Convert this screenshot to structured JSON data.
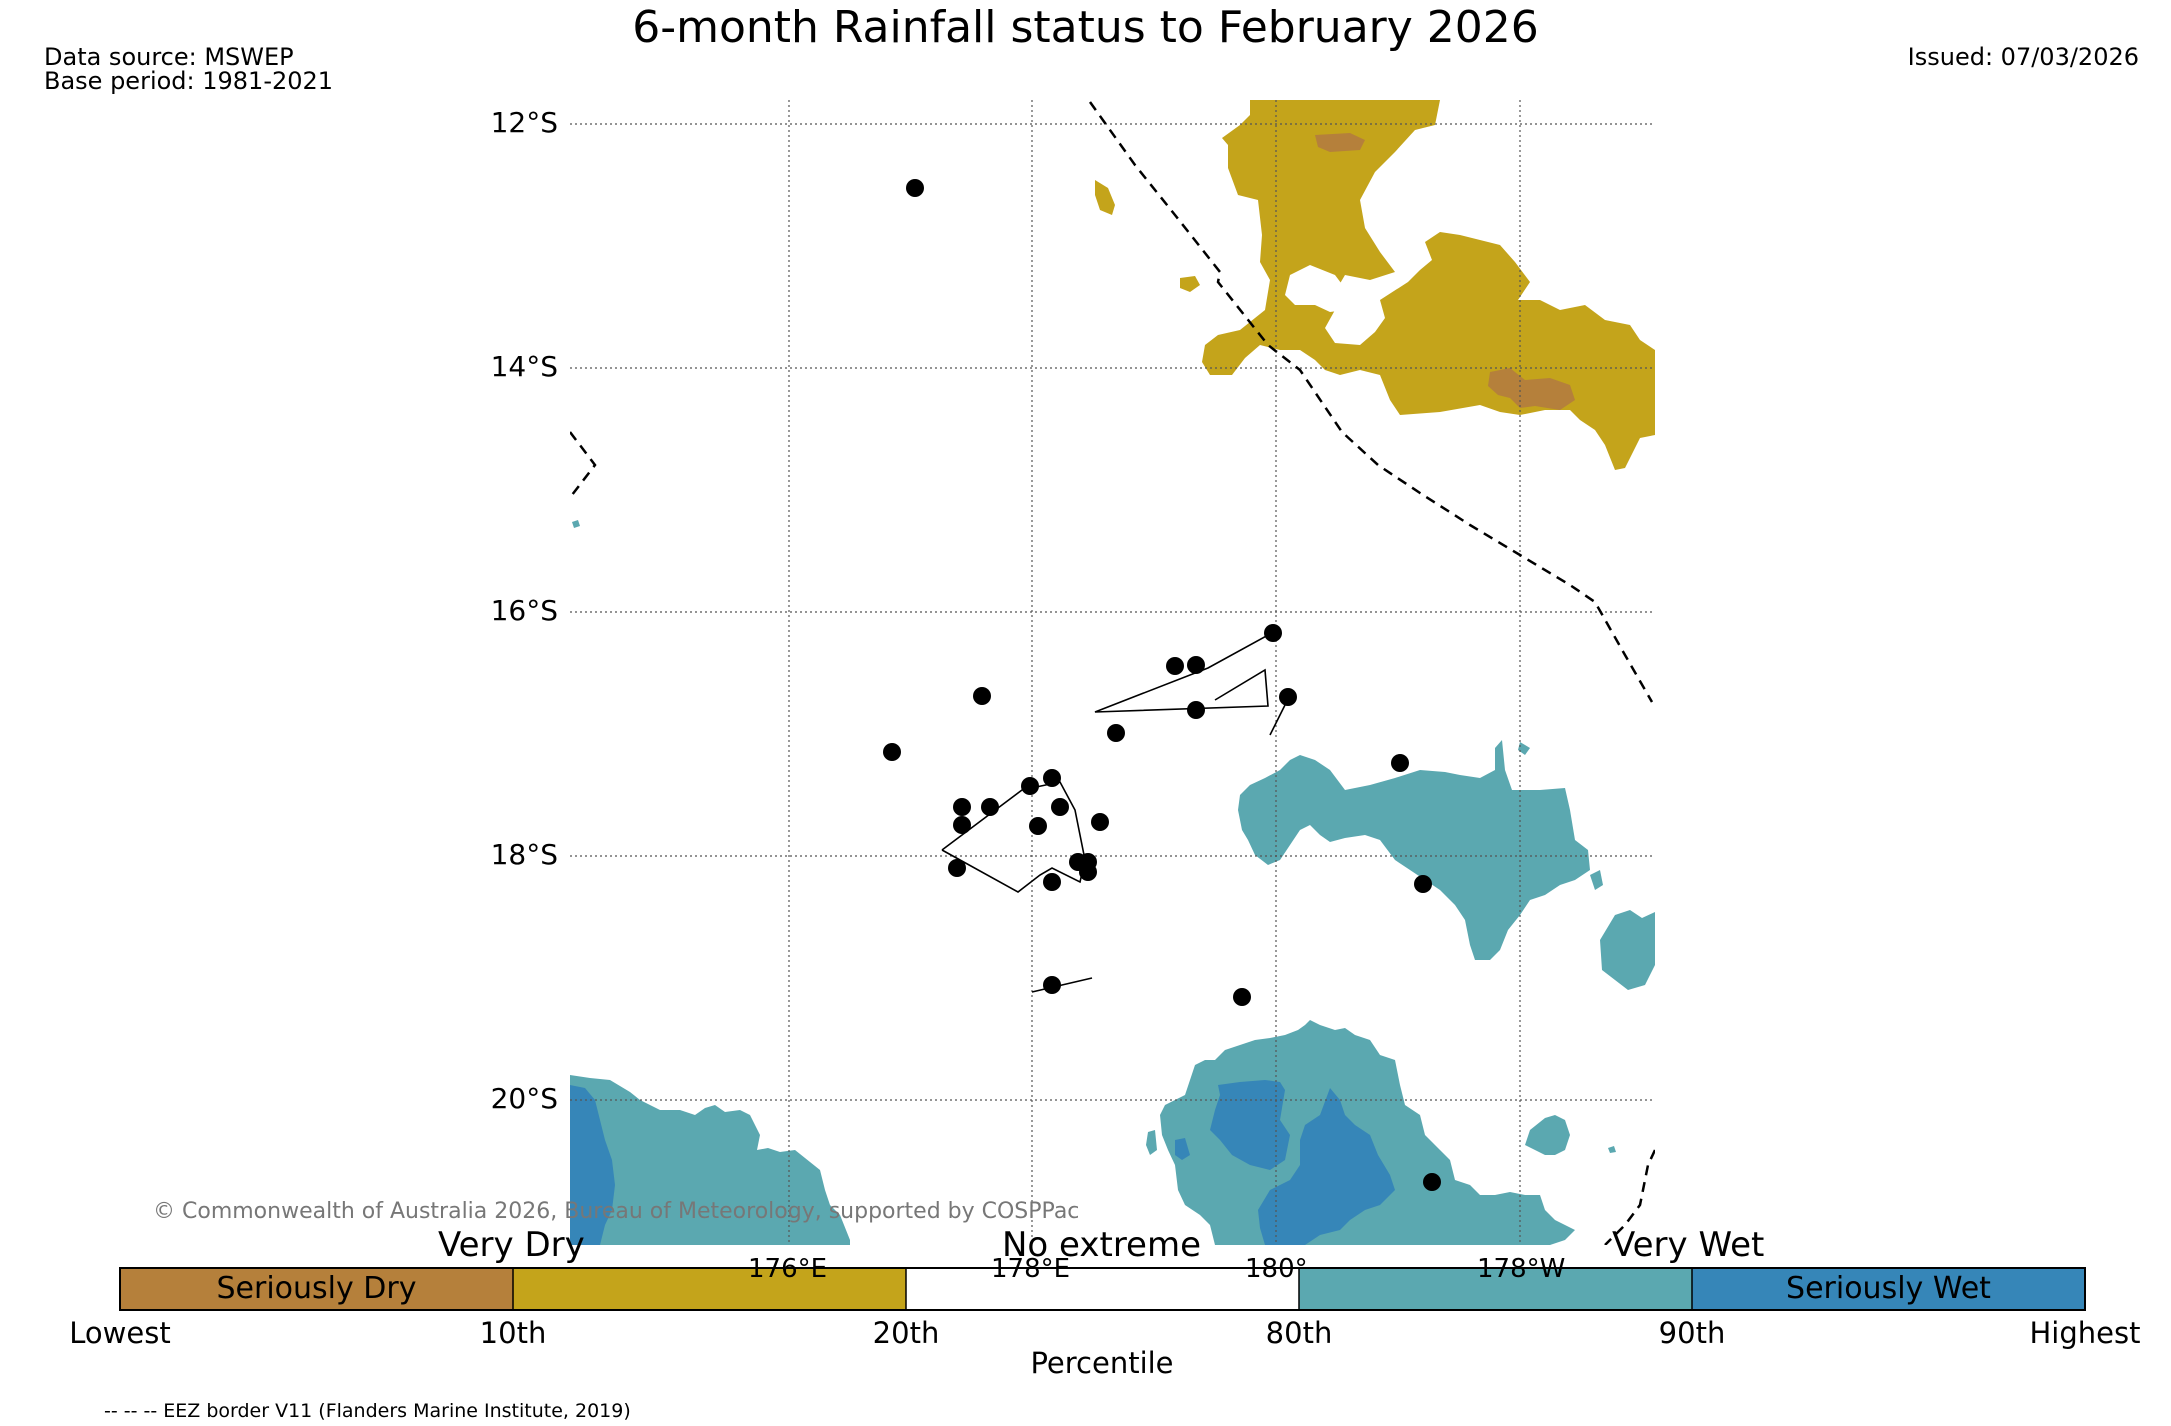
{
  "title": "6-month Rainfall status to February 2026",
  "data_source": "Data source: MSWEP",
  "base_period": "Base period: 1981-2021",
  "issued": "Issued: 07/03/2026",
  "lat_labels": [
    "12°S",
    "14°S",
    "16°S",
    "18°S",
    "20°S"
  ],
  "lon_labels": [
    "176°E",
    "178°E",
    "180°",
    "178°W"
  ],
  "copyright": "© Commonwealth of Australia 2026, Bureau of Meteorology, supported by COSPPac",
  "categories": {
    "very_dry": "Very Dry",
    "no_extreme": "No extreme",
    "very_wet": "Very Wet"
  },
  "colorbar": {
    "segments": [
      {
        "label": "Seriously Dry",
        "color": "#b5803b"
      },
      {
        "label": "",
        "color": "#c4a41b"
      },
      {
        "label": "",
        "color": "#ffffff"
      },
      {
        "label": "",
        "color": "#5ba8b0"
      },
      {
        "label": "Seriously Wet",
        "color": "#3686b8"
      }
    ],
    "ticks": [
      "Lowest",
      "10th",
      "20th",
      "80th",
      "90th",
      "Highest"
    ],
    "xlabel": "Percentile"
  },
  "legend_note": "-- -- -- EEZ border V11 (Flanders Marine Institute, 2019)",
  "colors": {
    "seriously_dry": "#b5803b",
    "very_dry": "#c4a41b",
    "very_wet": "#5ba8b0",
    "seriously_wet": "#3686b8"
  }
}
